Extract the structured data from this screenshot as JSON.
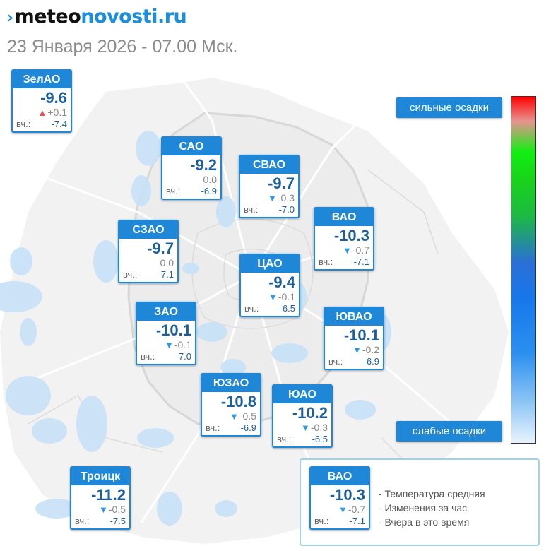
{
  "brand": {
    "part1": "meteo",
    "part2": "novosti.ru"
  },
  "date_text": "23 Января 2026 - 07.00 Мск.",
  "yesterday_label": "вч.:",
  "districts": [
    {
      "name": "ЗелАО",
      "temp": "-9.6",
      "trend": "up",
      "change": "+0.1",
      "yesterday": "-7.4"
    },
    {
      "name": "САО",
      "temp": "-9.2",
      "trend": "none",
      "change": "0.0",
      "yesterday": "-6.9"
    },
    {
      "name": "СВАО",
      "temp": "-9.7",
      "trend": "down",
      "change": "-0.3",
      "yesterday": "-7.0"
    },
    {
      "name": "ВАО",
      "temp": "-10.3",
      "trend": "down",
      "change": "-0.7",
      "yesterday": "-7.1"
    },
    {
      "name": "СЗАО",
      "temp": "-9.7",
      "trend": "none",
      "change": "0.0",
      "yesterday": "-7.1"
    },
    {
      "name": "ЦАО",
      "temp": "-9.4",
      "trend": "down",
      "change": "-0.1",
      "yesterday": "-6.5"
    },
    {
      "name": "ЗАО",
      "temp": "-10.1",
      "trend": "down",
      "change": "-0.1",
      "yesterday": "-7.0"
    },
    {
      "name": "ЮВАО",
      "temp": "-10.1",
      "trend": "down",
      "change": "-0.2",
      "yesterday": "-6.9"
    },
    {
      "name": "ЮЗАО",
      "temp": "-10.8",
      "trend": "down",
      "change": "-0.5",
      "yesterday": "-6.9"
    },
    {
      "name": "ЮАО",
      "temp": "-10.2",
      "trend": "down",
      "change": "-0.3",
      "yesterday": "-6.5"
    },
    {
      "name": "Троицк",
      "temp": "-11.2",
      "trend": "down",
      "change": "-0.5",
      "yesterday": "-7.5"
    }
  ],
  "scale": {
    "top_label": "сильные осадки",
    "bottom_label": "слабые осадки"
  },
  "legend": {
    "sample": {
      "name": "ВАО",
      "temp": "-10.3",
      "trend": "down",
      "change": "-0.7",
      "yesterday": "-7.1"
    },
    "items": [
      "- Температура средняя",
      "- Изменения за час",
      "- Вчера в это время"
    ]
  },
  "colors": {
    "accent": "#1f87d8",
    "temp_text": "#1b5f9f",
    "trend_down": "#2c9ae8",
    "trend_up": "#ee4b55",
    "precip_light": "#c7e1f8"
  }
}
